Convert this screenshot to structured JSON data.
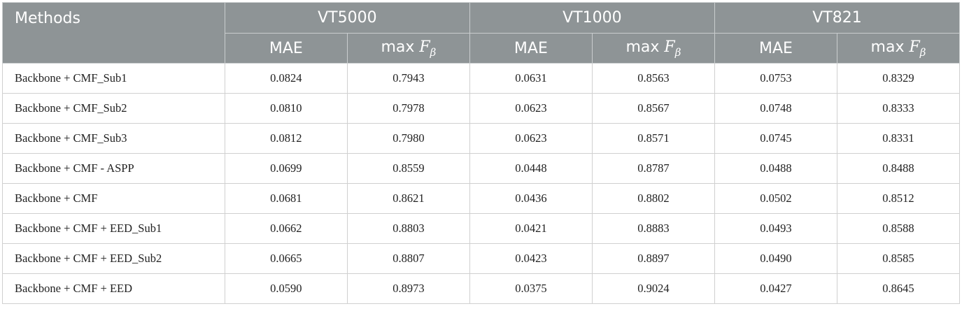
{
  "table": {
    "methods_header": "Methods",
    "datasets": [
      "VT5000",
      "VT1000",
      "VT821"
    ],
    "metric_mae": "MAE",
    "metric_maxf_prefix": "max",
    "metric_maxf_symbol": "F",
    "metric_maxf_subscript": "β",
    "rows": [
      {
        "method": "Backbone + CMF_Sub1",
        "values": [
          "0.0824",
          "0.7943",
          "0.0631",
          "0.8563",
          "0.0753",
          "0.8329"
        ]
      },
      {
        "method": "Backbone + CMF_Sub2",
        "values": [
          "0.0810",
          "0.7978",
          "0.0623",
          "0.8567",
          "0.0748",
          "0.8333"
        ]
      },
      {
        "method": "Backbone + CMF_Sub3",
        "values": [
          "0.0812",
          "0.7980",
          "0.0623",
          "0.8571",
          "0.0745",
          "0.8331"
        ]
      },
      {
        "method": "Backbone + CMF - ASPP",
        "values": [
          "0.0699",
          "0.8559",
          "0.0448",
          "0.8787",
          "0.0488",
          "0.8488"
        ]
      },
      {
        "method": "Backbone + CMF",
        "values": [
          "0.0681",
          "0.8621",
          "0.0436",
          "0.8802",
          "0.0502",
          "0.8512"
        ]
      },
      {
        "method": "Backbone + CMF + EED_Sub1",
        "values": [
          "0.0662",
          "0.8803",
          "0.0421",
          "0.8883",
          "0.0493",
          "0.8588"
        ]
      },
      {
        "method": "Backbone + CMF + EED_Sub2",
        "values": [
          "0.0665",
          "0.8807",
          "0.0423",
          "0.8897",
          "0.0490",
          "0.8585"
        ]
      },
      {
        "method": "Backbone + CMF + EED",
        "values": [
          "0.0590",
          "0.8973",
          "0.0375",
          "0.9024",
          "0.0427",
          "0.8645"
        ]
      }
    ]
  }
}
